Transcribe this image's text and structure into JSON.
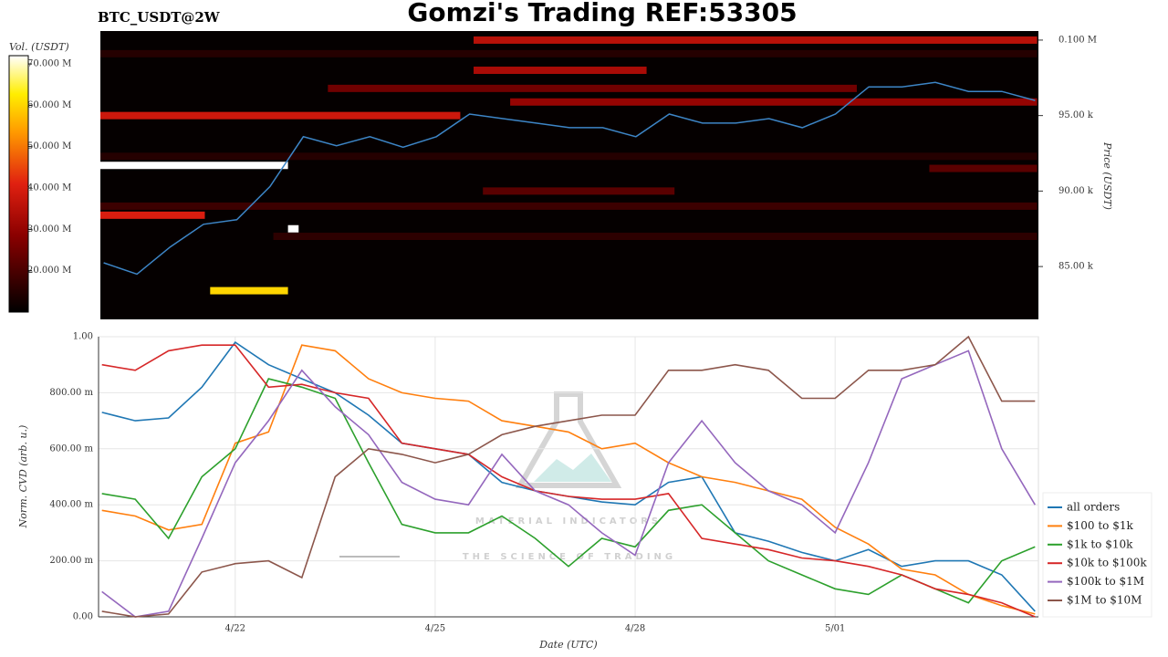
{
  "chart_data": [
    {
      "type": "heatmap",
      "title": "Gomzi's Trading REF:53305",
      "subtitle": "BTC_USDT@2W",
      "ylabel": "Price (USDT)",
      "colorbar_label": "Vol. (USDT)",
      "xlim": [
        19.95,
        34.05
      ],
      "ylim": [
        81500,
        100600
      ],
      "yticks": [
        {
          "value": 85000,
          "label": "85.00 k"
        },
        {
          "value": 90000,
          "label": "90.00 k"
        },
        {
          "value": 95000,
          "label": "95.00 k"
        },
        {
          "value": 100000,
          "label": "0.100 M"
        }
      ],
      "clim": [
        10,
        72
      ],
      "cticks": [
        {
          "value": 20,
          "label": "20.000 M"
        },
        {
          "value": 30,
          "label": "30.000 M"
        },
        {
          "value": 40,
          "label": "40.000 M"
        },
        {
          "value": 50,
          "label": "50.000 M"
        },
        {
          "value": 60,
          "label": "60.000 M"
        },
        {
          "value": 70,
          "label": "70.000 M"
        }
      ],
      "walls": [
        {
          "price": 100000,
          "start": 25.56,
          "end": 34.03,
          "volume": 35
        },
        {
          "price": 99100,
          "start": 19.95,
          "end": 34.03,
          "volume": 15
        },
        {
          "price": 98000,
          "start": 25.56,
          "end": 28.16,
          "volume": 33
        },
        {
          "price": 96800,
          "start": 23.37,
          "end": 31.32,
          "volume": 25
        },
        {
          "price": 95900,
          "start": 26.11,
          "end": 34.03,
          "volume": 30
        },
        {
          "price": 95000,
          "start": 19.95,
          "end": 25.36,
          "volume": 38
        },
        {
          "price": 92300,
          "start": 19.95,
          "end": 34.03,
          "volume": 15
        },
        {
          "price": 91700,
          "start": 19.95,
          "end": 22.77,
          "volume": 72
        },
        {
          "price": 91500,
          "start": 32.41,
          "end": 34.03,
          "volume": 22
        },
        {
          "price": 90000,
          "start": 25.7,
          "end": 28.58,
          "volume": 22
        },
        {
          "price": 89000,
          "start": 19.95,
          "end": 34.03,
          "volume": 18
        },
        {
          "price": 88400,
          "start": 19.95,
          "end": 21.52,
          "volume": 40
        },
        {
          "price": 87500,
          "start": 22.77,
          "end": 22.93,
          "volume": 72
        },
        {
          "price": 87000,
          "start": 22.55,
          "end": 34.03,
          "volume": 16
        },
        {
          "price": 83400,
          "start": 21.6,
          "end": 22.77,
          "volume": 60
        }
      ],
      "x": [
        20,
        20.5,
        21,
        21.5,
        22,
        22.5,
        23,
        23.5,
        24,
        24.5,
        25,
        25.5,
        26,
        26.5,
        27,
        27.5,
        28,
        28.5,
        29,
        29.5,
        30,
        30.5,
        31,
        31.5,
        32,
        32.5,
        33,
        33.5,
        34
      ],
      "series": [
        {
          "color": "#3d85c6",
          "values": [
            85250,
            84500,
            86300,
            87800,
            88100,
            90300,
            93600,
            93000,
            93600,
            92900,
            93600,
            95100,
            94800,
            94500,
            94200,
            94200,
            93600,
            95100,
            94500,
            94500,
            94800,
            94200,
            95100,
            96900,
            96900,
            97200,
            96600,
            96600,
            96000
          ]
        }
      ]
    },
    {
      "type": "line",
      "xlabel": "Date (UTC)",
      "ylabel": "Norm. CVD (arb. u.)",
      "legend": "right",
      "grid": true,
      "xlim": [
        19.95,
        34.05
      ],
      "ylim": [
        0,
        1
      ],
      "xticks": [
        {
          "value": 22,
          "label": "4/22"
        },
        {
          "value": 25,
          "label": "4/25"
        },
        {
          "value": 28,
          "label": "4/28"
        },
        {
          "value": 31,
          "label": "5/01"
        }
      ],
      "yticks": [
        {
          "value": 0,
          "label": "0.00"
        },
        {
          "value": 0.2,
          "label": "200.00 m"
        },
        {
          "value": 0.4,
          "label": "400.00 m"
        },
        {
          "value": 0.6,
          "label": "600.00 m"
        },
        {
          "value": 0.8,
          "label": "800.00 m"
        },
        {
          "value": 1,
          "label": "1.00"
        }
      ],
      "x": [
        20,
        20.5,
        21,
        21.5,
        22,
        22.5,
        23,
        23.5,
        24,
        24.5,
        25,
        25.5,
        26,
        26.5,
        27,
        27.5,
        28,
        28.5,
        29,
        29.5,
        30,
        30.5,
        31,
        31.5,
        32,
        32.5,
        33,
        33.5,
        34
      ],
      "series": [
        {
          "name": "all orders",
          "color": "#1f77b4",
          "values": [
            0.73,
            0.7,
            0.71,
            0.82,
            0.98,
            0.9,
            0.85,
            0.8,
            0.72,
            0.62,
            0.6,
            0.58,
            0.48,
            0.45,
            0.43,
            0.41,
            0.4,
            0.48,
            0.5,
            0.3,
            0.27,
            0.23,
            0.2,
            0.24,
            0.18,
            0.2,
            0.2,
            0.15,
            0.02
          ]
        },
        {
          "name": "$100 to $1k",
          "color": "#ff7f0e",
          "values": [
            0.38,
            0.36,
            0.31,
            0.33,
            0.62,
            0.66,
            0.97,
            0.95,
            0.85,
            0.8,
            0.78,
            0.77,
            0.7,
            0.68,
            0.66,
            0.6,
            0.62,
            0.55,
            0.5,
            0.48,
            0.45,
            0.42,
            0.32,
            0.26,
            0.17,
            0.15,
            0.08,
            0.04,
            0.01
          ]
        },
        {
          "name": "$1k to $10k",
          "color": "#2ca02c",
          "values": [
            0.44,
            0.42,
            0.28,
            0.5,
            0.6,
            0.85,
            0.82,
            0.78,
            0.55,
            0.33,
            0.3,
            0.3,
            0.36,
            0.28,
            0.18,
            0.28,
            0.25,
            0.38,
            0.4,
            0.3,
            0.2,
            0.15,
            0.1,
            0.08,
            0.15,
            0.1,
            0.05,
            0.2,
            0.25
          ]
        },
        {
          "name": "$10k to $100k",
          "color": "#d62728",
          "values": [
            0.9,
            0.88,
            0.95,
            0.97,
            0.97,
            0.82,
            0.83,
            0.8,
            0.78,
            0.62,
            0.6,
            0.58,
            0.5,
            0.45,
            0.43,
            0.42,
            0.42,
            0.44,
            0.28,
            0.26,
            0.24,
            0.21,
            0.2,
            0.18,
            0.15,
            0.1,
            0.08,
            0.05,
            0
          ]
        },
        {
          "name": "$100k to $1M",
          "color": "#9467bd",
          "values": [
            0.09,
            0,
            0.02,
            0.28,
            0.55,
            0.7,
            0.88,
            0.75,
            0.65,
            0.48,
            0.42,
            0.4,
            0.58,
            0.45,
            0.4,
            0.3,
            0.22,
            0.55,
            0.7,
            0.55,
            0.45,
            0.4,
            0.3,
            0.55,
            0.85,
            0.9,
            0.95,
            0.6,
            0.4
          ]
        },
        {
          "name": "$1M to $10M",
          "color": "#8c564b",
          "values": [
            0.02,
            0,
            0.01,
            0.16,
            0.19,
            0.2,
            0.14,
            0.5,
            0.6,
            0.58,
            0.55,
            0.58,
            0.65,
            0.68,
            0.7,
            0.72,
            0.72,
            0.88,
            0.88,
            0.9,
            0.88,
            0.78,
            0.78,
            0.88,
            0.88,
            0.9,
            1,
            0.77,
            0.77
          ]
        }
      ]
    }
  ],
  "watermark": {
    "title": "MATERIAL INDICATORS",
    "subtitle": "THE SCIENCE OF TRADING"
  }
}
